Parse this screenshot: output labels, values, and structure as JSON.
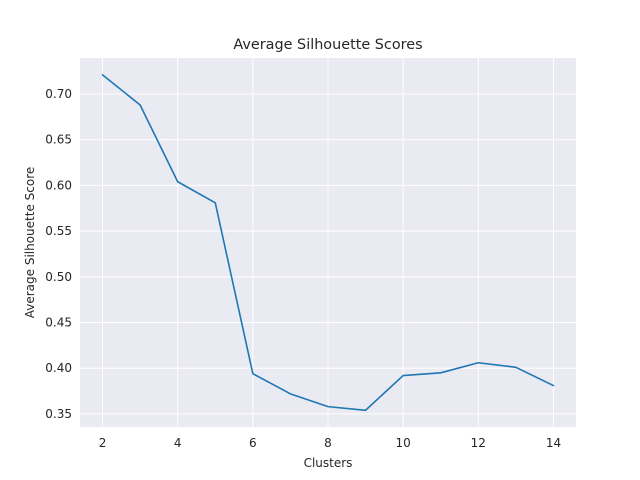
{
  "chart_data": {
    "type": "line",
    "title": "Average Silhouette Scores",
    "xlabel": "Clusters",
    "ylabel": "Average Silhouette Score",
    "x": [
      2,
      3,
      4,
      5,
      6,
      7,
      8,
      9,
      10,
      11,
      12,
      13,
      14
    ],
    "series": [
      {
        "values": [
          0.721,
          0.688,
          0.604,
          0.581,
          0.394,
          0.372,
          0.358,
          0.354,
          0.392,
          0.395,
          0.406,
          0.401,
          0.381
        ],
        "color": "#1f77b4"
      }
    ],
    "xlim": [
      1.4,
      14.6
    ],
    "ylim": [
      0.3357,
      0.7394
    ],
    "xticks": [
      2,
      4,
      6,
      8,
      10,
      12,
      14
    ],
    "xtick_labels": [
      "2",
      "4",
      "6",
      "8",
      "10",
      "12",
      "14"
    ],
    "yticks": [
      0.35,
      0.4,
      0.45,
      0.5,
      0.55,
      0.6,
      0.65,
      0.7
    ],
    "ytick_labels": [
      "0.35",
      "0.40",
      "0.45",
      "0.50",
      "0.55",
      "0.60",
      "0.65",
      "0.70"
    ],
    "grid": true,
    "background_color": "#eaeaf2",
    "grid_color": "#ffffff"
  }
}
